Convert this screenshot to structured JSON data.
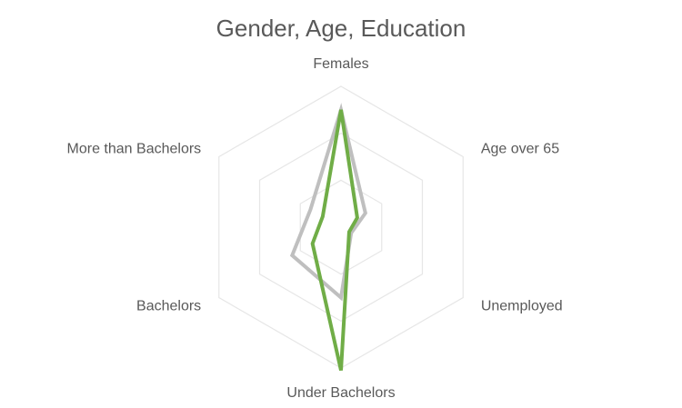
{
  "chart_data": {
    "type": "radar",
    "title": "Gender, Age, Education",
    "categories": [
      "Females",
      "Age over 65",
      "Unemployed",
      "Under Bachelors",
      "Bachelors",
      "More than Bachelors"
    ],
    "range": [
      0,
      0.6
    ],
    "gridlines": [
      0.2,
      0.4,
      0.6
    ],
    "grid": true,
    "legend": "none",
    "series": [
      {
        "color": "#bfbfbf",
        "values": [
          0.5,
          0.12,
          0.05,
          0.3,
          0.24,
          0.15
        ]
      },
      {
        "color": "#70ad47",
        "values": [
          0.5,
          0.08,
          0.04,
          0.61,
          0.14,
          0.09
        ]
      }
    ]
  }
}
